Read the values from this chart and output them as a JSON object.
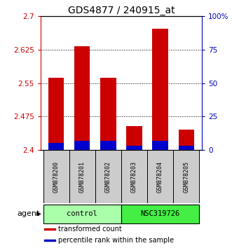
{
  "title": "GDS4877 / 240915_at",
  "samples": [
    "GSM878200",
    "GSM878201",
    "GSM878202",
    "GSM878203",
    "GSM878204",
    "GSM878205"
  ],
  "transformed_counts": [
    2.562,
    2.632,
    2.562,
    2.454,
    2.672,
    2.445
  ],
  "percentile_ranks": [
    5,
    7,
    7,
    3,
    7,
    3
  ],
  "y_min": 2.4,
  "y_max": 2.7,
  "y_ticks": [
    2.4,
    2.475,
    2.55,
    2.625,
    2.7
  ],
  "y_tick_labels": [
    "2.4",
    "2.475",
    "2.55",
    "2.625",
    "2.7"
  ],
  "right_y_ticks": [
    0,
    25,
    50,
    75,
    100
  ],
  "right_y_labels": [
    "0",
    "25",
    "50",
    "75",
    "100%"
  ],
  "bar_color_red": "#cc0000",
  "bar_color_blue": "#0000cc",
  "bar_width": 0.6,
  "groups": [
    {
      "label": "control",
      "color": "#aaffaa"
    },
    {
      "label": "NSC319726",
      "color": "#44ee44"
    }
  ],
  "agent_label": "agent",
  "legend_items": [
    {
      "color": "#cc0000",
      "label": "transformed count"
    },
    {
      "color": "#0000cc",
      "label": "percentile rank within the sample"
    }
  ],
  "left_axis_color": "#cc0000",
  "right_axis_color": "#0000bb",
  "background_color": "#ffffff",
  "plot_bg": "#ffffff",
  "tick_label_fontsize": 7.5,
  "title_fontsize": 10,
  "sample_fontsize": 6,
  "group_fontsize": 7.5,
  "legend_fontsize": 7
}
